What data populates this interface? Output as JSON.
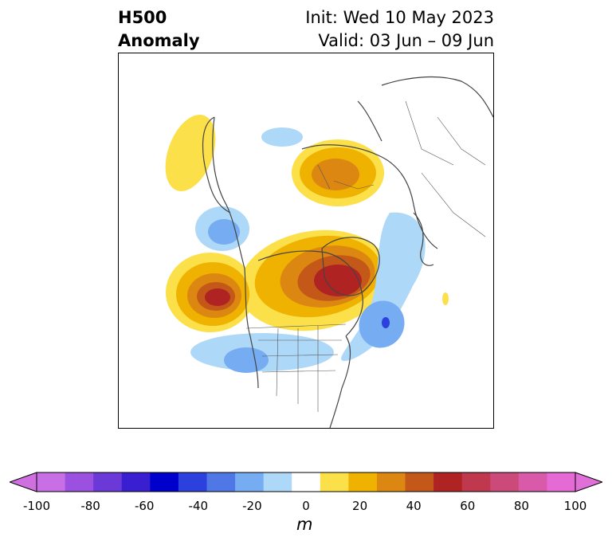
{
  "title": {
    "left_line1": "H500",
    "left_line2": "Anomaly",
    "right_line1": "Init: Wed 10 May 2023",
    "right_line2": "Valid: 03 Jun – 09 Jun"
  },
  "colorbar": {
    "units": "m",
    "tick_labels": [
      "-100",
      "-80",
      "-60",
      "-40",
      "-20",
      "0",
      "20",
      "40",
      "60",
      "80",
      "100"
    ],
    "colors": [
      "#c86fe6",
      "#9c50e0",
      "#6a39d8",
      "#3a1fd0",
      "#0000cd",
      "#2b40dc",
      "#4f77e6",
      "#76acf2",
      "#aed8f8",
      "#ffffff",
      "#fce04a",
      "#f0b200",
      "#dc8712",
      "#c45818",
      "#af2323",
      "#c0384d",
      "#cc4a7a",
      "#d95aa9",
      "#e56ad4"
    ],
    "over_color": "#e070d8",
    "under_color": "#d070e0"
  },
  "map": {
    "projection": "polar-stereographic",
    "region": "North America / Arctic"
  }
}
